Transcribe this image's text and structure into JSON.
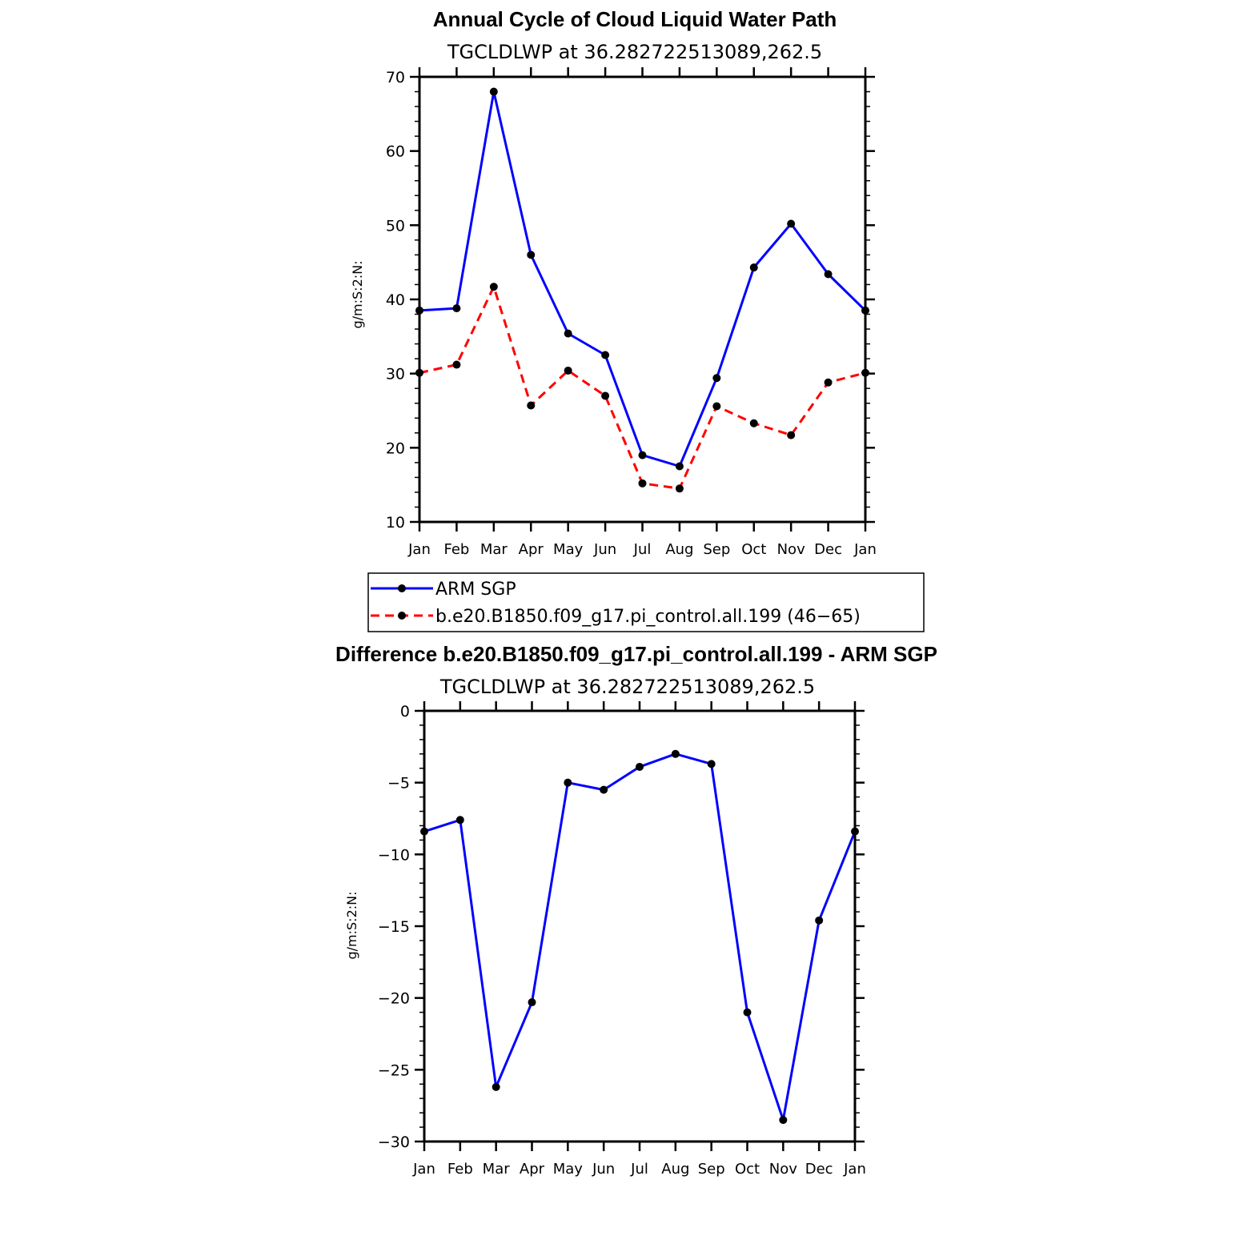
{
  "chart_data": [
    {
      "type": "line",
      "title": "Annual Cycle of Cloud Liquid Water Path",
      "subtitle": "TGCLDLWP  at  36.282722513089,262.5",
      "ylabel": "g/m:S:2:N:",
      "xlabel": "",
      "ylim": [
        10,
        70
      ],
      "yticks": [
        10,
        20,
        30,
        40,
        50,
        60,
        70
      ],
      "categories": [
        "Jan",
        "Feb",
        "Mar",
        "Apr",
        "May",
        "Jun",
        "Jul",
        "Aug",
        "Sep",
        "Oct",
        "Nov",
        "Dec",
        "Jan"
      ],
      "series": [
        {
          "name": "ARM SGP",
          "color": "#0000ff",
          "dashed": false,
          "values": [
            38.5,
            38.8,
            68.0,
            46.0,
            35.4,
            32.5,
            19.0,
            17.5,
            29.4,
            44.3,
            50.2,
            43.4,
            38.5
          ]
        },
        {
          "name": "b.e20.B1850.f09_g17.pi_control.all.199 (46−65)",
          "color": "#ff0000",
          "dashed": true,
          "values": [
            30.1,
            31.2,
            41.7,
            25.7,
            30.4,
            27.0,
            15.2,
            14.5,
            25.6,
            23.3,
            21.7,
            28.8,
            30.1
          ]
        }
      ],
      "legend": "bottom"
    },
    {
      "type": "line",
      "title": "Difference b.e20.B1850.f09_g17.pi_control.all.199 - ARM SGP",
      "subtitle": "TGCLDLWP  at  36.282722513089,262.5",
      "ylabel": "g/m:S:2:N:",
      "xlabel": "",
      "ylim": [
        -30,
        0
      ],
      "yticks": [
        0,
        -5,
        -10,
        -15,
        -20,
        -25,
        -30
      ],
      "ytick_labels": [
        "0",
        "−5",
        "−10",
        "−15",
        "−20",
        "−25",
        "−30"
      ],
      "categories": [
        "Jan",
        "Feb",
        "Mar",
        "Apr",
        "May",
        "Jun",
        "Jul",
        "Aug",
        "Sep",
        "Oct",
        "Nov",
        "Dec",
        "Jan"
      ],
      "series": [
        {
          "name": "Difference",
          "color": "#0000ff",
          "dashed": false,
          "values": [
            -8.4,
            -7.6,
            -26.2,
            -20.3,
            -5.0,
            -5.5,
            -3.9,
            -3.0,
            -3.7,
            -21.0,
            -28.5,
            -14.6,
            -8.4
          ]
        }
      ]
    }
  ]
}
